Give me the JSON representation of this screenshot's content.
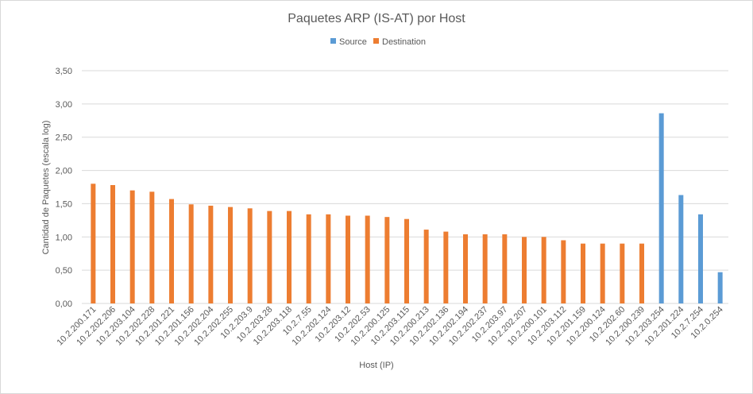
{
  "chart_data": {
    "type": "bar",
    "title": "Paquetes ARP (IS-AT) por Host",
    "xlabel": "Host (IP)",
    "ylabel": "Cantidad de Paquetes (escala log)",
    "ylim": [
      0,
      3.5
    ],
    "ytick_step": 0.5,
    "ytick_labels": [
      "0,00",
      "0,50",
      "1,00",
      "1,50",
      "2,00",
      "2,50",
      "3,00",
      "3,50"
    ],
    "grid": true,
    "legend_position": "top",
    "categories": [
      "10.2.200.171",
      "10.2.202.206",
      "10.2.203.104",
      "10.2.202.228",
      "10.2.201.221",
      "10.2.201.156",
      "10.2.202.204",
      "10.2.202.255",
      "10.2.203.9",
      "10.2.203.28",
      "10.2.203.118",
      "10.2.7.55",
      "10.2.202.124",
      "10.2.203.12",
      "10.2.202.53",
      "10.2.200.125",
      "10.2.203.115",
      "10.2.200.213",
      "10.2.202.136",
      "10.2.202.194",
      "10.2.202.237",
      "10.2.203.97",
      "10.2.202.207",
      "10.2.200.101",
      "10.2.203.112",
      "10.2.201.159",
      "10.2.200.124",
      "10.2.202.60",
      "10.2.200.239",
      "10.2.203.254",
      "10.2.201.224",
      "10.2.7.254",
      "10.2.0.254"
    ],
    "series": [
      {
        "name": "Source",
        "color": "#5b9bd5",
        "values": [
          null,
          null,
          null,
          null,
          null,
          null,
          null,
          null,
          null,
          null,
          null,
          null,
          null,
          null,
          null,
          null,
          null,
          null,
          null,
          null,
          null,
          null,
          null,
          null,
          null,
          null,
          null,
          null,
          null,
          2.86,
          1.63,
          1.34,
          0.47
        ]
      },
      {
        "name": "Destination",
        "color": "#ed7d31",
        "values": [
          1.8,
          1.78,
          1.7,
          1.68,
          1.57,
          1.49,
          1.47,
          1.45,
          1.43,
          1.39,
          1.39,
          1.34,
          1.34,
          1.32,
          1.32,
          1.3,
          1.27,
          1.11,
          1.08,
          1.04,
          1.04,
          1.04,
          1.0,
          1.0,
          0.95,
          0.9,
          0.9,
          0.9,
          0.9,
          null,
          null,
          null,
          null
        ]
      }
    ]
  }
}
